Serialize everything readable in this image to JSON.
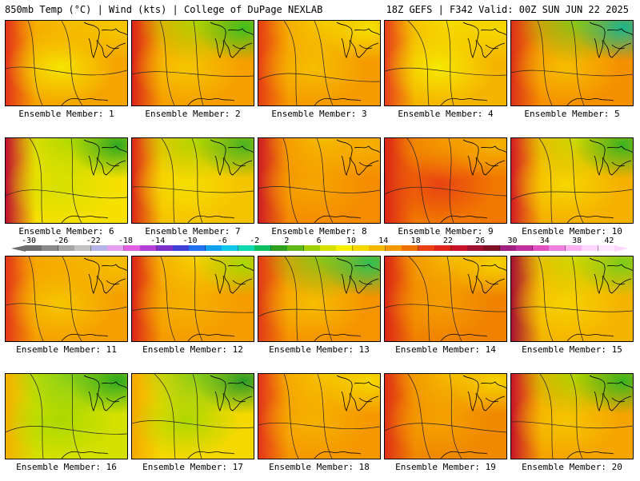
{
  "header": {
    "title_left": "850mb Temp (°C) | Wind (kts) | College of DuPage NEXLAB",
    "title_right": "18Z GEFS | F342 Valid: 00Z SUN JUN 22 2025"
  },
  "members": [
    {
      "label": "Ensemble Member: 1",
      "base": "#f5a400",
      "west": "#e4321a",
      "center": "#f5e800",
      "north": "#f5c000",
      "ne": "#f5c800"
    },
    {
      "label": "Ensemble Member: 2",
      "base": "#f5a000",
      "west": "#dc2418",
      "center": "#f5c800",
      "north": "#a8d800",
      "ne": "#3ec01e"
    },
    {
      "label": "Ensemble Member: 3",
      "base": "#f59a00",
      "west": "#e63e14",
      "center": "#f5c000",
      "north": "#f5d000",
      "ne": "#f5e000"
    },
    {
      "label": "Ensemble Member: 4",
      "base": "#f5b400",
      "west": "#e8401a",
      "center": "#f5ec00",
      "north": "#f5e000",
      "ne": "#f5d800"
    },
    {
      "label": "Ensemble Member: 5",
      "base": "#f59000",
      "west": "#dc3018",
      "center": "#f5c000",
      "north": "#7ccc1a",
      "ne": "#1ab48c"
    },
    {
      "label": "Ensemble Member: 6",
      "base": "#f5e000",
      "west": "#c01030",
      "center": "#d4e000",
      "north": "#a8d800",
      "ne": "#2ea820"
    },
    {
      "label": "Ensemble Member: 7",
      "base": "#f5c400",
      "west": "#dc2818",
      "center": "#f5e000",
      "north": "#a8d800",
      "ne": "#48b420"
    },
    {
      "label": "Ensemble Member: 8",
      "base": "#f58c00",
      "west": "#d01c24",
      "center": "#f5a800",
      "north": "#f5c000",
      "ne": "#f5b000"
    },
    {
      "label": "Ensemble Member: 9",
      "base": "#f07800",
      "west": "#dc2418",
      "center": "#e84014",
      "north": "#f5a000",
      "ne": "#f5b400"
    },
    {
      "label": "Ensemble Member: 10",
      "base": "#f5b000",
      "west": "#d41c24",
      "center": "#f5d800",
      "north": "#c8dc00",
      "ne": "#3ab420"
    },
    {
      "label": "Ensemble Member: 11",
      "base": "#f5a000",
      "west": "#e4361a",
      "center": "#f5c800",
      "north": "#f5b400",
      "ne": "#f5c000"
    },
    {
      "label": "Ensemble Member: 12",
      "base": "#f59c00",
      "west": "#dc2418",
      "center": "#f5b400",
      "north": "#f5d800",
      "ne": "#a8d800"
    },
    {
      "label": "Ensemble Member: 13",
      "base": "#f59400",
      "west": "#e03a16",
      "center": "#f5c000",
      "north": "#7ccc1a",
      "ne": "#2ec050"
    },
    {
      "label": "Ensemble Member: 14",
      "base": "#f08200",
      "west": "#dc2418",
      "center": "#f5a000",
      "north": "#f5c000",
      "ne": "#f5d400"
    },
    {
      "label": "Ensemble Member: 15",
      "base": "#f5b400",
      "west": "#a81030",
      "center": "#f5d400",
      "north": "#c8dc00",
      "ne": "#7ccc1a"
    },
    {
      "label": "Ensemble Member: 16",
      "base": "#d4e000",
      "west": "#f5b000",
      "center": "#a8d800",
      "north": "#7ccc1a",
      "ne": "#2ea820"
    },
    {
      "label": "Ensemble Member: 17",
      "base": "#f5d800",
      "west": "#f5a800",
      "center": "#a8d800",
      "north": "#7ccc1a",
      "ne": "#2a9c28"
    },
    {
      "label": "Ensemble Member: 18",
      "base": "#f59800",
      "west": "#e4341a",
      "center": "#f5b400",
      "north": "#f5c800",
      "ne": "#f5d800"
    },
    {
      "label": "Ensemble Member: 19",
      "base": "#f08800",
      "west": "#e03016",
      "center": "#f5a400",
      "north": "#f5c000",
      "ne": "#f5d400"
    },
    {
      "label": "Ensemble Member: 20",
      "base": "#f5a400",
      "west": "#c81428",
      "center": "#f5c800",
      "north": "#a8d800",
      "ne": "#3ab420"
    }
  ],
  "colorbar": {
    "labels": [
      "-30",
      "-26",
      "-22",
      "-18",
      "-14",
      "-10",
      "-6",
      "-2",
      "2",
      "6",
      "10",
      "14",
      "18",
      "22",
      "26",
      "30",
      "34",
      "38",
      "42"
    ],
    "colors": [
      "#6e6e6e",
      "#8a8a8a",
      "#a6a6a6",
      "#c2c2c2",
      "#b4b4e6",
      "#e6a0f0",
      "#e060e0",
      "#b040d8",
      "#7a30c8",
      "#4040d8",
      "#2070f0",
      "#10a0f0",
      "#10c8e8",
      "#10d8b0",
      "#10c060",
      "#30a020",
      "#60b818",
      "#a0d000",
      "#d8e000",
      "#f5f000",
      "#f5d800",
      "#f5b800",
      "#f59800",
      "#f07000",
      "#e84014",
      "#dc2418",
      "#c81428",
      "#a01030",
      "#801028",
      "#a02080",
      "#c030a0",
      "#e050c0",
      "#f080e0",
      "#ffb0f0",
      "#ffd6ff",
      "#ffe8ff"
    ]
  }
}
